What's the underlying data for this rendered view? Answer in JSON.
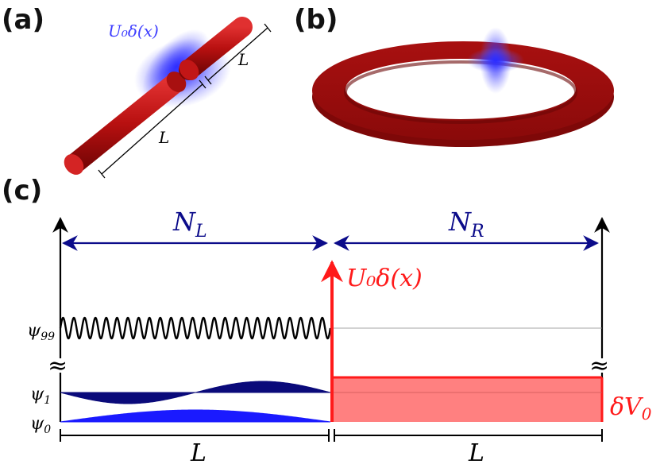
{
  "panels": {
    "a": {
      "label": "(a)",
      "potential_label": "U₀δ(x)",
      "length_top": "L",
      "length_bottom": "L"
    },
    "b": {
      "label": "(b)"
    },
    "c": {
      "label": "(c)",
      "left_count_label": "N",
      "left_count_sub": "L",
      "right_count_label": "N",
      "right_count_sub": "R",
      "barrier_label": "U₀δ(x)",
      "offset_label": "δV",
      "offset_sub": "0",
      "psi99": "ψ",
      "psi99_sub": "99",
      "psi1": "ψ",
      "psi1_sub": "1",
      "psi0": "ψ",
      "psi0_sub": "0",
      "length_left": "L",
      "length_right": "L",
      "axis_break_symbol": "≈"
    }
  },
  "colors": {
    "tube": "#c41a1a",
    "barrier_blue": "#4d4dff",
    "arrow_navy": "#0b0b8a",
    "psi1": "#0a0a7a",
    "psi0": "#1a1aff",
    "barrier_red": "#ff1a1a",
    "offset_fill": "#ff8080"
  }
}
